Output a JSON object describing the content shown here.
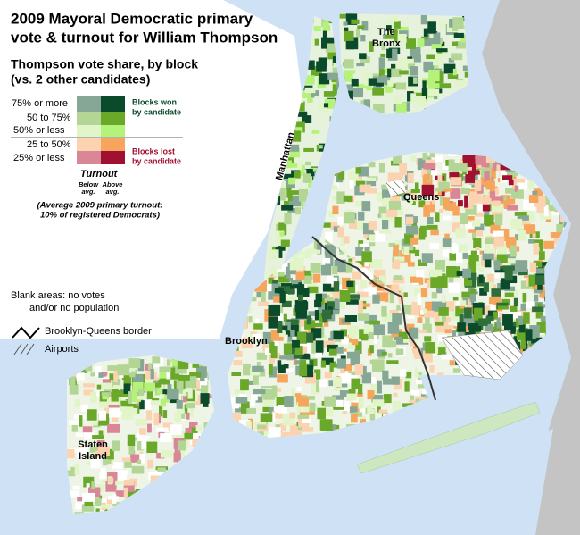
{
  "title": [
    "2009 Mayoral Democratic primary",
    "vote & turnout for William Thompson"
  ],
  "legend": {
    "title": [
      "Thompson vote share, by block",
      "(vs. 2 other candidates)"
    ],
    "rows": [
      "75% or more",
      "50 to 75%",
      "50% or less",
      "25 to 50%",
      "25% or less"
    ],
    "won": [
      "Blocks won",
      "by candidate"
    ],
    "lost": [
      "Blocks lost",
      "by candidate"
    ],
    "turnout": "Turnout",
    "below": [
      "Below",
      "avg."
    ],
    "above": [
      "Above",
      "avg."
    ],
    "average_note": [
      "(Average 2009 primary turnout:",
      "10% of registered Democrats)"
    ]
  },
  "notes": {
    "blank": [
      "Blank areas: no votes",
      "and/or no population"
    ],
    "border": "Brooklyn-Queens border",
    "airports": "Airports"
  },
  "places": {
    "bronx": [
      "The",
      "Bronx"
    ],
    "manhattan": "Manhattan",
    "queens": "Queens",
    "brooklyn": "Brooklyn",
    "staten_island": [
      "Staten",
      "Island"
    ]
  }
}
